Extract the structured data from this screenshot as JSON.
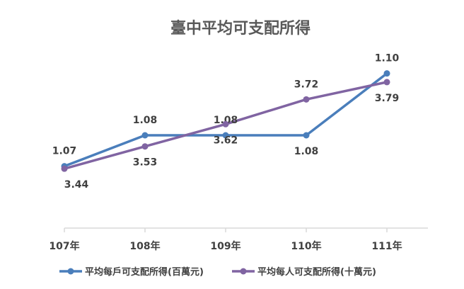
{
  "chart_data": {
    "type": "line",
    "title": "臺中平均可支配所得",
    "categories": [
      "107年",
      "108年",
      "109年",
      "110年",
      "111年"
    ],
    "series": [
      {
        "name": "平均每戶可支配所得(百萬元)",
        "values": [
          1.07,
          1.08,
          1.08,
          1.08,
          1.1
        ],
        "color": "#4A7EBB",
        "ylim": [
          1.05,
          1.11
        ],
        "label_position": [
          "above",
          "above",
          "above",
          "below",
          "above"
        ]
      },
      {
        "name": "平均每人可支配所得(十萬元)",
        "values": [
          3.44,
          3.53,
          3.62,
          3.72,
          3.79
        ],
        "color": "#8064A2",
        "ylim": [
          3.2,
          3.95
        ],
        "label_position": [
          "below",
          "below",
          "below",
          "above",
          "below"
        ]
      }
    ],
    "grid": false,
    "legend": "bottom"
  }
}
